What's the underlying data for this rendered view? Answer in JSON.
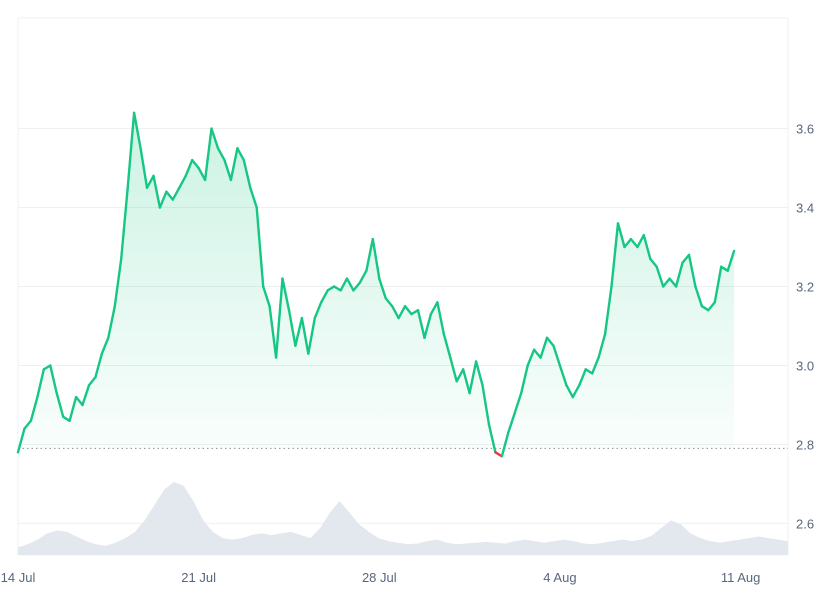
{
  "colors": {
    "line_up": "#16c784",
    "line_down": "#ea3943",
    "area_top": "#16c784",
    "volume": "#e3e7ee",
    "grid": "#eef0f3",
    "baseline": "#8a8f98",
    "tick_text": "#58667e"
  },
  "chart_data": {
    "type": "area",
    "title": "",
    "xlabel": "",
    "ylabel": "",
    "ylim": [
      2.52,
      3.88
    ],
    "grid": true,
    "legend": "none",
    "baseline_value": 2.79,
    "x_range": [
      "2025-07-14",
      "2025-08-14"
    ],
    "x_ticks": [
      {
        "label": "14 Jul",
        "x": "2025-07-14"
      },
      {
        "label": "21 Jul",
        "x": "2025-07-21"
      },
      {
        "label": "28 Jul",
        "x": "2025-07-28"
      },
      {
        "label": "4 Aug",
        "x": "2025-08-04"
      },
      {
        "label": "11 Aug",
        "x": "2025-08-11"
      }
    ],
    "y_ticks": [
      3.6,
      3.4,
      3.2,
      3.0,
      2.8,
      2.6
    ],
    "series": [
      {
        "values": [
          [
            "2025-07-14 00:00",
            2.78
          ],
          [
            "2025-07-14 06:00",
            2.84
          ],
          [
            "2025-07-14 12:00",
            2.86
          ],
          [
            "2025-07-14 18:00",
            2.92
          ],
          [
            "2025-07-15 00:00",
            2.99
          ],
          [
            "2025-07-15 06:00",
            3.0
          ],
          [
            "2025-07-15 12:00",
            2.93
          ],
          [
            "2025-07-15 18:00",
            2.87
          ],
          [
            "2025-07-16 00:00",
            2.86
          ],
          [
            "2025-07-16 06:00",
            2.92
          ],
          [
            "2025-07-16 12:00",
            2.9
          ],
          [
            "2025-07-16 18:00",
            2.95
          ],
          [
            "2025-07-17 00:00",
            2.97
          ],
          [
            "2025-07-17 06:00",
            3.03
          ],
          [
            "2025-07-17 12:00",
            3.07
          ],
          [
            "2025-07-17 18:00",
            3.15
          ],
          [
            "2025-07-18 00:00",
            3.27
          ],
          [
            "2025-07-18 06:00",
            3.45
          ],
          [
            "2025-07-18 12:00",
            3.64
          ],
          [
            "2025-07-18 18:00",
            3.55
          ],
          [
            "2025-07-19 00:00",
            3.45
          ],
          [
            "2025-07-19 06:00",
            3.48
          ],
          [
            "2025-07-19 12:00",
            3.4
          ],
          [
            "2025-07-19 18:00",
            3.44
          ],
          [
            "2025-07-20 00:00",
            3.42
          ],
          [
            "2025-07-20 06:00",
            3.45
          ],
          [
            "2025-07-20 12:00",
            3.48
          ],
          [
            "2025-07-20 18:00",
            3.52
          ],
          [
            "2025-07-21 00:00",
            3.5
          ],
          [
            "2025-07-21 06:00",
            3.47
          ],
          [
            "2025-07-21 12:00",
            3.6
          ],
          [
            "2025-07-21 18:00",
            3.55
          ],
          [
            "2025-07-22 00:00",
            3.52
          ],
          [
            "2025-07-22 06:00",
            3.47
          ],
          [
            "2025-07-22 12:00",
            3.55
          ],
          [
            "2025-07-22 18:00",
            3.52
          ],
          [
            "2025-07-23 00:00",
            3.45
          ],
          [
            "2025-07-23 06:00",
            3.4
          ],
          [
            "2025-07-23 12:00",
            3.2
          ],
          [
            "2025-07-23 18:00",
            3.15
          ],
          [
            "2025-07-24 00:00",
            3.02
          ],
          [
            "2025-07-24 06:00",
            3.22
          ],
          [
            "2025-07-24 12:00",
            3.14
          ],
          [
            "2025-07-24 18:00",
            3.05
          ],
          [
            "2025-07-25 00:00",
            3.12
          ],
          [
            "2025-07-25 06:00",
            3.03
          ],
          [
            "2025-07-25 12:00",
            3.12
          ],
          [
            "2025-07-25 18:00",
            3.16
          ],
          [
            "2025-07-26 00:00",
            3.19
          ],
          [
            "2025-07-26 06:00",
            3.2
          ],
          [
            "2025-07-26 12:00",
            3.19
          ],
          [
            "2025-07-26 18:00",
            3.22
          ],
          [
            "2025-07-27 00:00",
            3.19
          ],
          [
            "2025-07-27 06:00",
            3.21
          ],
          [
            "2025-07-27 12:00",
            3.24
          ],
          [
            "2025-07-27 18:00",
            3.32
          ],
          [
            "2025-07-28 00:00",
            3.22
          ],
          [
            "2025-07-28 06:00",
            3.17
          ],
          [
            "2025-07-28 12:00",
            3.15
          ],
          [
            "2025-07-28 18:00",
            3.12
          ],
          [
            "2025-07-29 00:00",
            3.15
          ],
          [
            "2025-07-29 06:00",
            3.13
          ],
          [
            "2025-07-29 12:00",
            3.14
          ],
          [
            "2025-07-29 18:00",
            3.07
          ],
          [
            "2025-07-30 00:00",
            3.13
          ],
          [
            "2025-07-30 06:00",
            3.16
          ],
          [
            "2025-07-30 12:00",
            3.08
          ],
          [
            "2025-07-30 18:00",
            3.02
          ],
          [
            "2025-07-31 00:00",
            2.96
          ],
          [
            "2025-07-31 06:00",
            2.99
          ],
          [
            "2025-07-31 12:00",
            2.93
          ],
          [
            "2025-07-31 18:00",
            3.01
          ],
          [
            "2025-08-01 00:00",
            2.95
          ],
          [
            "2025-08-01 06:00",
            2.85
          ],
          [
            "2025-08-01 12:00",
            2.78
          ],
          [
            "2025-08-01 18:00",
            2.77
          ],
          [
            "2025-08-02 00:00",
            2.83
          ],
          [
            "2025-08-02 06:00",
            2.88
          ],
          [
            "2025-08-02 12:00",
            2.93
          ],
          [
            "2025-08-02 18:00",
            3.0
          ],
          [
            "2025-08-03 00:00",
            3.04
          ],
          [
            "2025-08-03 06:00",
            3.02
          ],
          [
            "2025-08-03 12:00",
            3.07
          ],
          [
            "2025-08-03 18:00",
            3.05
          ],
          [
            "2025-08-04 00:00",
            3.0
          ],
          [
            "2025-08-04 06:00",
            2.95
          ],
          [
            "2025-08-04 12:00",
            2.92
          ],
          [
            "2025-08-04 18:00",
            2.95
          ],
          [
            "2025-08-05 00:00",
            2.99
          ],
          [
            "2025-08-05 06:00",
            2.98
          ],
          [
            "2025-08-05 12:00",
            3.02
          ],
          [
            "2025-08-05 18:00",
            3.08
          ],
          [
            "2025-08-06 00:00",
            3.2
          ],
          [
            "2025-08-06 06:00",
            3.36
          ],
          [
            "2025-08-06 12:00",
            3.3
          ],
          [
            "2025-08-06 18:00",
            3.32
          ],
          [
            "2025-08-07 00:00",
            3.3
          ],
          [
            "2025-08-07 06:00",
            3.33
          ],
          [
            "2025-08-07 12:00",
            3.27
          ],
          [
            "2025-08-07 18:00",
            3.25
          ],
          [
            "2025-08-08 00:00",
            3.2
          ],
          [
            "2025-08-08 06:00",
            3.22
          ],
          [
            "2025-08-08 12:00",
            3.2
          ],
          [
            "2025-08-08 18:00",
            3.26
          ],
          [
            "2025-08-09 00:00",
            3.28
          ],
          [
            "2025-08-09 06:00",
            3.2
          ],
          [
            "2025-08-09 12:00",
            3.15
          ],
          [
            "2025-08-09 18:00",
            3.14
          ],
          [
            "2025-08-10 00:00",
            3.16
          ],
          [
            "2025-08-10 06:00",
            3.25
          ],
          [
            "2025-08-10 12:00",
            3.24
          ],
          [
            "2025-08-10 18:00",
            3.29
          ]
        ]
      }
    ],
    "volume": [
      0.1,
      0.14,
      0.2,
      0.28,
      0.32,
      0.3,
      0.24,
      0.18,
      0.14,
      0.12,
      0.16,
      0.22,
      0.3,
      0.45,
      0.65,
      0.85,
      0.95,
      0.9,
      0.7,
      0.45,
      0.3,
      0.22,
      0.2,
      0.22,
      0.26,
      0.28,
      0.26,
      0.28,
      0.3,
      0.26,
      0.22,
      0.35,
      0.55,
      0.7,
      0.55,
      0.4,
      0.3,
      0.22,
      0.18,
      0.16,
      0.14,
      0.15,
      0.18,
      0.2,
      0.16,
      0.14,
      0.15,
      0.16,
      0.17,
      0.16,
      0.15,
      0.18,
      0.2,
      0.18,
      0.16,
      0.18,
      0.2,
      0.18,
      0.15,
      0.14,
      0.16,
      0.18,
      0.2,
      0.18,
      0.2,
      0.25,
      0.35,
      0.45,
      0.4,
      0.28,
      0.22,
      0.18,
      0.16,
      0.18,
      0.2,
      0.22,
      0.24,
      0.22,
      0.2,
      0.18
    ]
  }
}
